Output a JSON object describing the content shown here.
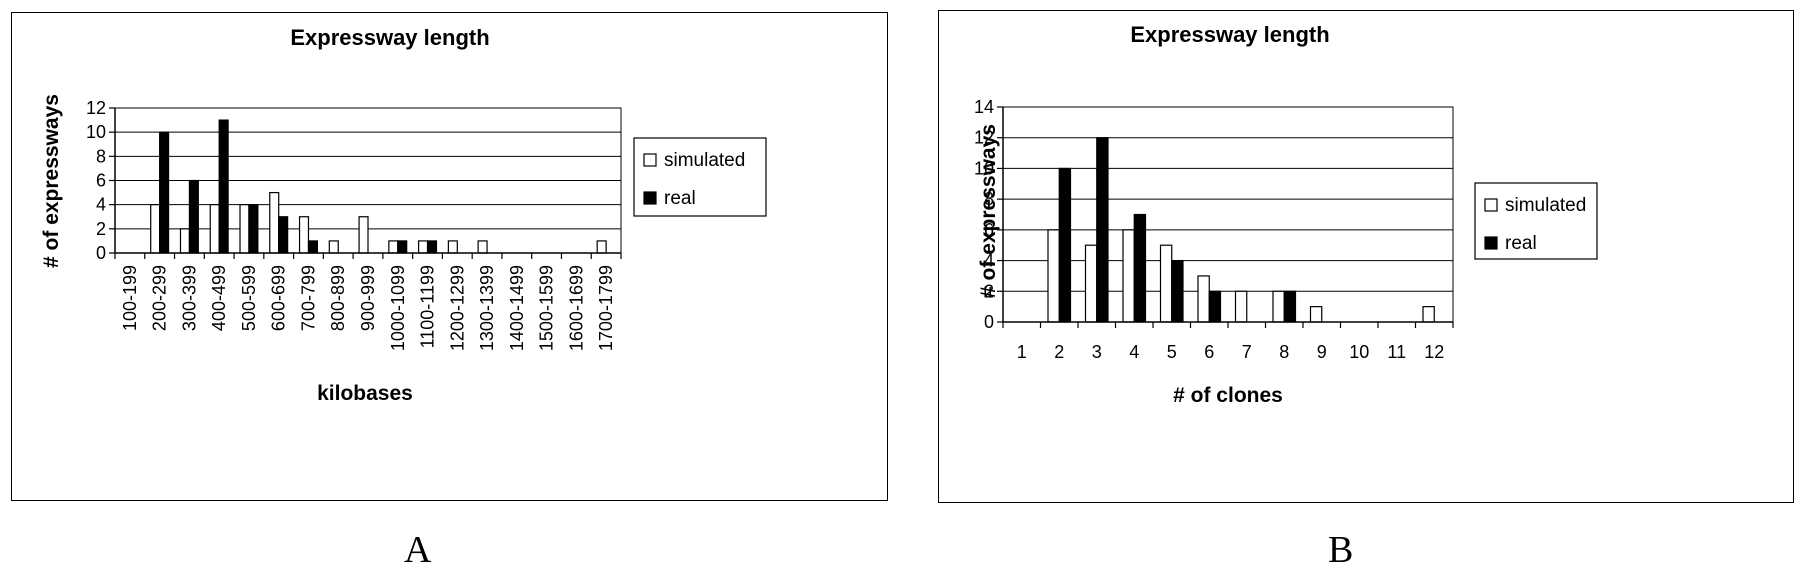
{
  "chart_data": [
    {
      "type": "bar",
      "title": "Expressway length",
      "xlabel": "kilobases",
      "ylabel": "# of expressways",
      "ylim": [
        0,
        12
      ],
      "yticks": [
        0,
        2,
        4,
        6,
        8,
        10,
        12
      ],
      "grid": true,
      "legend_position": "right",
      "categories": [
        "100-199",
        "200-299",
        "300-399",
        "400-499",
        "500-599",
        "600-699",
        "700-799",
        "800-899",
        "900-999",
        "1000-1099",
        "1100-1199",
        "1200-1299",
        "1300-1399",
        "1400-1499",
        "1500-1599",
        "1600-1699",
        "1700-1799"
      ],
      "series": [
        {
          "name": "simulated",
          "color": "#ffffff",
          "values": [
            0,
            4,
            2,
            4,
            4,
            5,
            3,
            1,
            3,
            1,
            1,
            1,
            1,
            0,
            0,
            0,
            1
          ]
        },
        {
          "name": "real",
          "color": "#000000",
          "values": [
            0,
            10,
            6,
            11,
            4,
            3,
            1,
            0,
            0,
            1,
            1,
            0,
            0,
            0,
            0,
            0,
            0
          ]
        }
      ]
    },
    {
      "type": "bar",
      "title": "Expressway length",
      "xlabel": "# of clones",
      "ylabel": "# of expressways",
      "ylim": [
        0,
        14
      ],
      "yticks": [
        0,
        2,
        4,
        6,
        8,
        10,
        12,
        14
      ],
      "grid": true,
      "legend_position": "right",
      "categories": [
        "1",
        "2",
        "3",
        "4",
        "5",
        "6",
        "7",
        "8",
        "9",
        "10",
        "11",
        "12"
      ],
      "series": [
        {
          "name": "simulated",
          "color": "#ffffff",
          "values": [
            0,
            6,
            5,
            6,
            5,
            3,
            2,
            2,
            1,
            0,
            0,
            1
          ]
        },
        {
          "name": "real",
          "color": "#000000",
          "values": [
            0,
            10,
            12,
            7,
            4,
            2,
            0,
            2,
            0,
            0,
            0,
            0
          ]
        }
      ]
    }
  ],
  "panel_labels": [
    "A",
    "B"
  ]
}
